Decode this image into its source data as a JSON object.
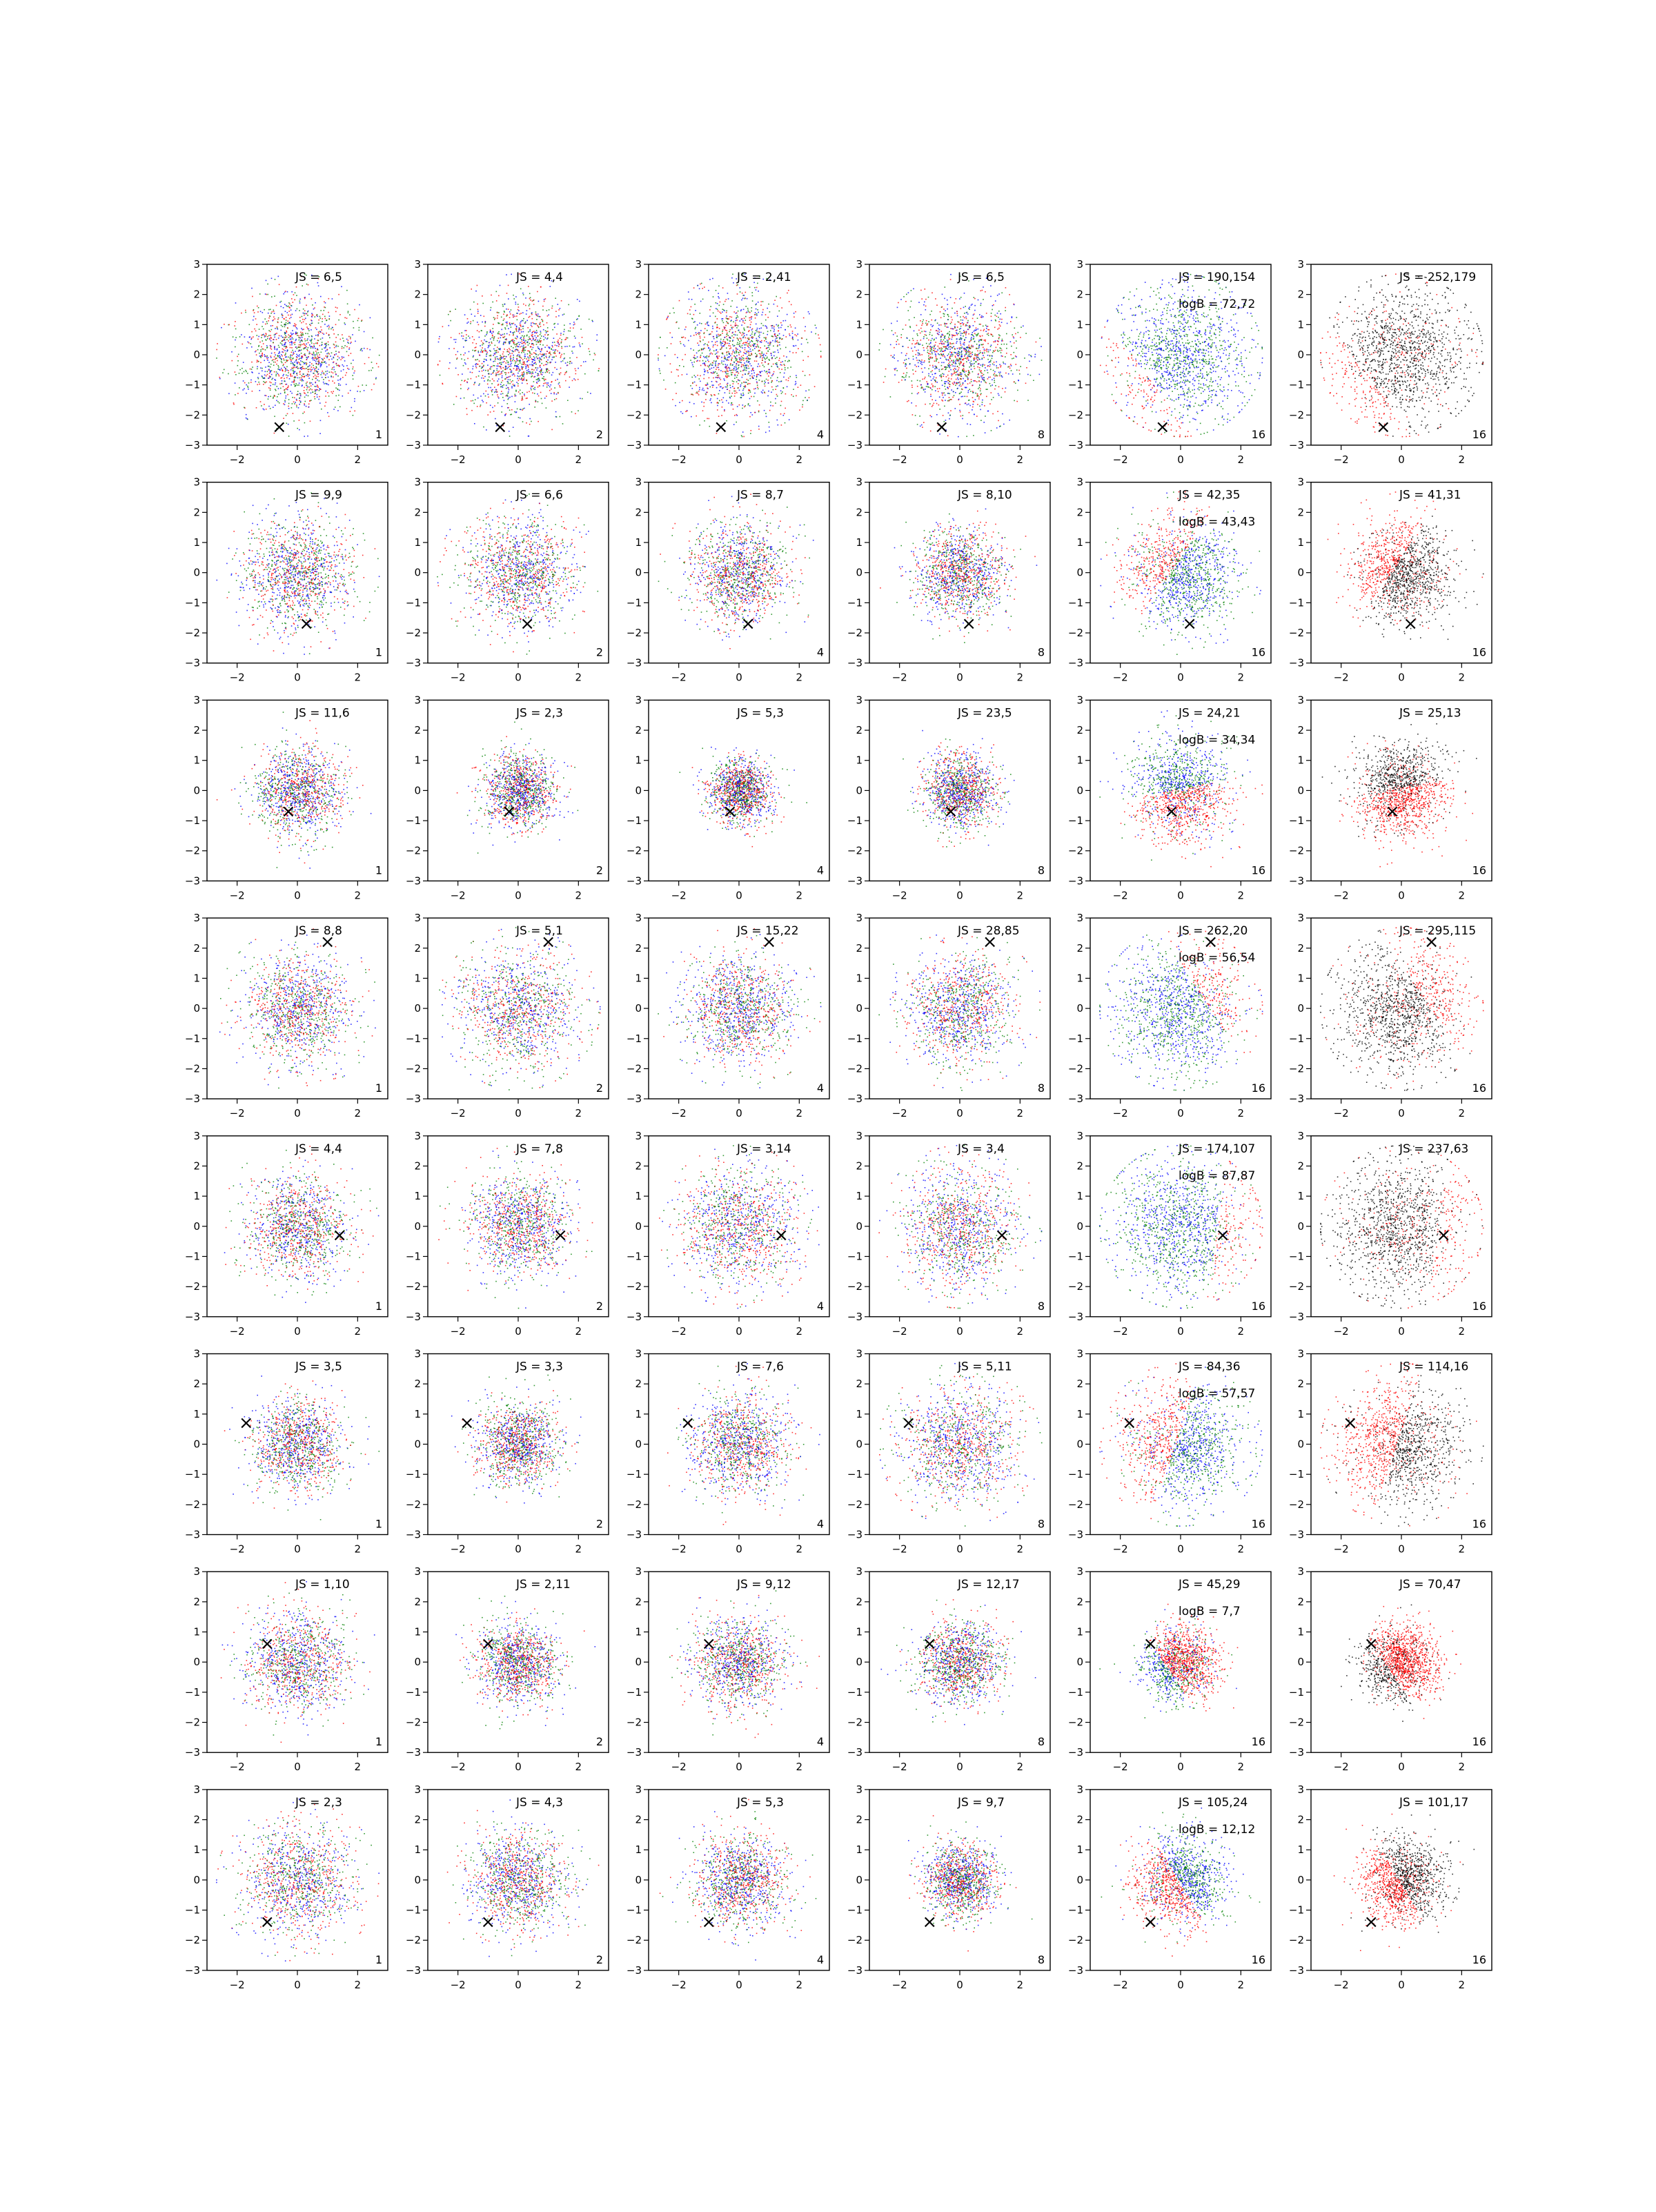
{
  "figure": {
    "layout": {
      "rows": 8,
      "cols": 6
    },
    "xlim": [
      -3,
      3
    ],
    "ylim": [
      -3,
      3
    ],
    "xticks": [
      "−2",
      "0",
      "2"
    ],
    "xtick_values": [
      -2,
      0,
      2
    ],
    "yticks": [
      "3",
      "2",
      "1",
      "0",
      "−1",
      "−2",
      "−3"
    ],
    "ytick_values": [
      3,
      2,
      1,
      0,
      -1,
      -2,
      -3
    ],
    "colors": {
      "red": "#ff0000",
      "green": "#008000",
      "blue": "#0000ff",
      "black": "#000000",
      "frame": "#000000"
    },
    "marker": "×",
    "corner_labels": [
      "1",
      "2",
      "4",
      "8",
      "16",
      "16"
    ]
  },
  "chart_data": {
    "type": "scatter",
    "description_units": "data units on both axes; each panel shows a point cloud plus an × marker at (marker_x, marker_y)",
    "rows": [
      {
        "marker": [
          -0.6,
          -2.4
        ],
        "spread": [
          1.3,
          1.3,
          1.4,
          1.3,
          1.5,
          1.5
        ],
        "js": [
          "JS = 6,5",
          "JS = 4,4",
          "JS = 2,41",
          "JS = 6,5",
          "JS = 190,154",
          "JS = 252,179"
        ],
        "logB": "logB = 72,72"
      },
      {
        "marker": [
          0.3,
          -1.7
        ],
        "spread": [
          1.2,
          1.2,
          1.1,
          1.0,
          1.2,
          1.1
        ],
        "js": [
          "JS = 9,9",
          "JS = 6,6",
          "JS = 8,7",
          "JS = 8,10",
          "JS = 42,35",
          "JS = 41,31"
        ],
        "logB": "logB = 43,43"
      },
      {
        "marker": [
          -0.3,
          -0.7
        ],
        "spread": [
          1.0,
          0.8,
          0.7,
          0.8,
          1.1,
          1.0
        ],
        "js": [
          "JS = 11,6",
          "JS = 2,3",
          "JS = 5,3",
          "JS = 23,5",
          "JS = 24,21",
          "JS = 25,13"
        ],
        "logB": "logB = 34,34"
      },
      {
        "marker": [
          1.0,
          2.2
        ],
        "spread": [
          1.2,
          1.3,
          1.2,
          1.2,
          1.4,
          1.4
        ],
        "js": [
          "JS = 8,8",
          "JS = 5,1",
          "JS = 15,22",
          "JS = 28,85",
          "JS = 262,20",
          "JS = 295,115"
        ],
        "logB": "logB = 56,54"
      },
      {
        "marker": [
          1.4,
          -0.3
        ],
        "spread": [
          1.1,
          1.1,
          1.3,
          1.3,
          1.5,
          1.5
        ],
        "js": [
          "JS = 4,4",
          "JS = 7,8",
          "JS = 3,14",
          "JS = 3,4",
          "JS = 174,107",
          "JS = 237,63"
        ],
        "logB": "logB = 87,87"
      },
      {
        "marker": [
          -1.7,
          0.7
        ],
        "spread": [
          1.0,
          0.9,
          1.1,
          1.3,
          1.3,
          1.3
        ],
        "js": [
          "JS = 3,5",
          "JS = 3,3",
          "JS = 7,6",
          "JS = 5,11",
          "JS = 84,36",
          "JS = 114,16"
        ],
        "logB": "logB = 57,57"
      },
      {
        "marker": [
          -1.0,
          0.6
        ],
        "spread": [
          1.1,
          0.9,
          1.0,
          0.9,
          0.8,
          0.8
        ],
        "js": [
          "JS = 1,10",
          "JS = 2,11",
          "JS = 9,12",
          "JS = 12,17",
          "JS = 45,29",
          "JS = 70,47"
        ],
        "logB": "logB = 7,7"
      },
      {
        "marker": [
          -1.0,
          -1.4
        ],
        "spread": [
          1.2,
          1.1,
          1.0,
          0.8,
          1.0,
          0.9
        ],
        "js": [
          "JS = 2,3",
          "JS = 4,3",
          "JS = 5,3",
          "JS = 9,7",
          "JS = 105,24",
          "JS = 101,17"
        ],
        "logB": "logB = 12,12"
      }
    ],
    "panel_styles": {
      "mixed_columns": "red, green and blue points intermixed",
      "col5": "red/green/blue clusters, red separated toward marker",
      "col6": "red and black points, red separated toward marker"
    },
    "red_cluster_offset": [
      [
        -1.2,
        -0.9
      ],
      [
        -0.6,
        0.4
      ],
      [
        0.1,
        -0.5
      ],
      [
        0.9,
        0.6
      ],
      [
        1.4,
        -0.2
      ],
      [
        -0.6,
        0.2
      ],
      [
        0.3,
        0.2
      ],
      [
        -0.5,
        -0.3
      ]
    ]
  }
}
